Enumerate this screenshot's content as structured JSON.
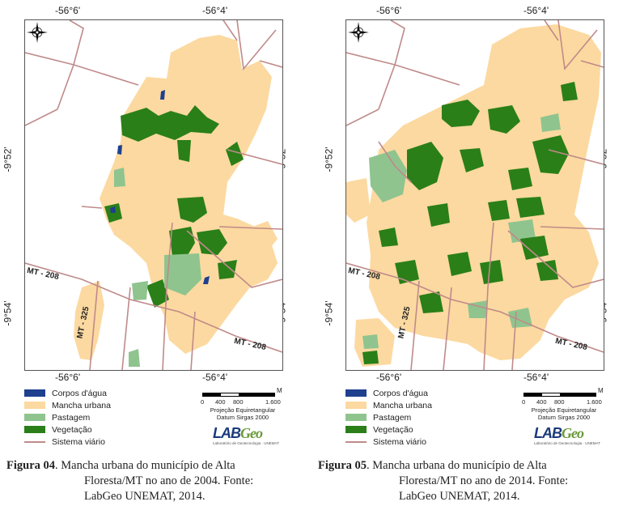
{
  "coords": {
    "lon_left": "-56°6'",
    "lon_right": "-56°4'",
    "lat_top": "-9°52'",
    "lat_bottom": "-9°54'"
  },
  "roads": {
    "mt208": "MT - 208",
    "mt325": "MT - 325"
  },
  "legend": [
    {
      "label": "Corpos d'água",
      "color": "#1f3f8f",
      "kind": "box"
    },
    {
      "label": "Mancha urbana",
      "color": "#fcd9a0",
      "kind": "box"
    },
    {
      "label": "Pastagem",
      "color": "#8fc48f",
      "kind": "box"
    },
    {
      "label": "Vegetação",
      "color": "#2a7f18",
      "kind": "box"
    },
    {
      "label": "Sistema viário",
      "color": "#c08a8a",
      "kind": "line"
    }
  ],
  "scale": {
    "unit": "M",
    "ticks": [
      "0",
      "400",
      "800",
      "1.600"
    ],
    "projection": "Projeção Equiretangular",
    "datum": "Datum Sirgas 2000"
  },
  "logo": {
    "lab": "LAB",
    "geo": "Geo",
    "sub": "Laboratório de Geotecnologia · UNEMAT"
  },
  "figures": [
    {
      "num": "Figura 04",
      "lines": [
        ". Mancha urbana do município de Alta",
        "Floresta/MT no ano de 2004. Fonte:",
        "LabGeo UNEMAT, 2014."
      ]
    },
    {
      "num": "Figura 05",
      "lines": [
        ". Mancha urbana do município de Alta",
        "Floresta/MT no ano de 2014. Fonte:",
        "LabGeo UNEMAT, 2014."
      ]
    }
  ]
}
